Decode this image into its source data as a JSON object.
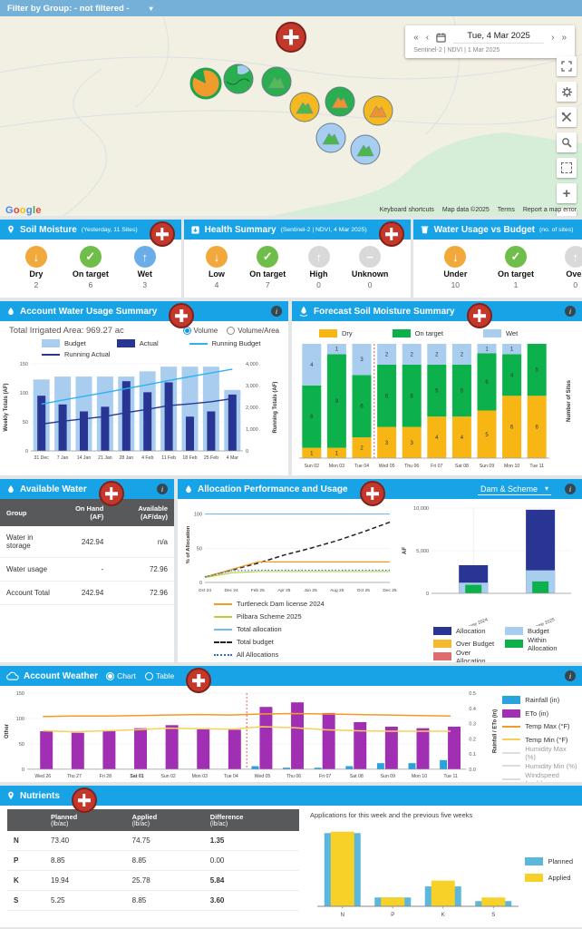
{
  "icons": {
    "info": "i",
    "caret": "▾"
  },
  "filter_bar": {
    "label": "Filter by Group: - not filtered -"
  },
  "map": {
    "date_nav": {
      "prev_fast": "«",
      "prev": "‹",
      "date": "Tue, 4 Mar 2025",
      "next": "›",
      "next_fast": "»",
      "subtitle": "Sentinel-2 | NDVI | 1 Mar 2025"
    },
    "logo": "Google",
    "attribution": [
      "Keyboard shortcuts",
      "Map data ©2025",
      "Terms",
      "Report a map error"
    ],
    "controls": [
      {
        "name": "fullscreen"
      },
      {
        "name": "settings"
      },
      {
        "name": "tools"
      },
      {
        "name": "search"
      },
      {
        "name": "selection"
      },
      {
        "name": "zoom-in"
      },
      {
        "name": "zoom-out"
      }
    ],
    "markers": [
      {
        "x": 227,
        "y": 74,
        "fill": "#f09b2c",
        "ring": "#1fa34c",
        "inner": "pie",
        "innerColor": "#1fa34c"
      },
      {
        "x": 263,
        "y": 69,
        "fill": "#2aae4f",
        "inner": "fields",
        "innerColor": "#a5cdf0"
      },
      {
        "x": 305,
        "y": 72,
        "fill": "#2aae4f",
        "inner": "mountain",
        "innerColor": "#52bd57"
      },
      {
        "x": 336,
        "y": 100,
        "fill": "#f4b820",
        "inner": "mountain",
        "innerColor": "#4cb84c"
      },
      {
        "x": 375,
        "y": 94,
        "fill": "#2aae4f",
        "inner": "mountain",
        "innerColor": "#f0922f"
      },
      {
        "x": 417,
        "y": 104,
        "fill": "#f4b820",
        "inner": "mountain",
        "innerColor": "#f0922f"
      },
      {
        "x": 365,
        "y": 134,
        "fill": "#a7cdf0",
        "inner": "mountain",
        "innerColor": "#4cb84c"
      },
      {
        "x": 403,
        "y": 147,
        "fill": "#a7cdf0",
        "inner": "mountain",
        "innerColor": "#4cb84c"
      }
    ]
  },
  "summary_cards": [
    {
      "icon": "pin",
      "icon_name": "location-pin-icon",
      "title": "Soil Moisture",
      "subtitle": "(Yesterday, 11 Sites)",
      "items": [
        {
          "label": "Dry",
          "value": "2",
          "glyph": "↓",
          "color": "#f2a93b"
        },
        {
          "label": "On target",
          "value": "6",
          "glyph": "✓",
          "color": "#6fbe4a"
        },
        {
          "label": "Wet",
          "value": "3",
          "glyph": "↑",
          "color": "#6aade8"
        }
      ]
    },
    {
      "icon": "box",
      "icon_name": "health-box-icon",
      "title": "Health Summary",
      "subtitle": "(Sentinel-2 | NDVI, 4 Mar 2025)",
      "items": [
        {
          "label": "Low",
          "value": "4",
          "glyph": "↓",
          "color": "#f2a93b"
        },
        {
          "label": "On target",
          "value": "7",
          "glyph": "✓",
          "color": "#6fbe4a"
        },
        {
          "label": "High",
          "value": "0",
          "glyph": "↑",
          "color": "#d9d9d9"
        },
        {
          "label": "Unknown",
          "value": "0",
          "glyph": "−",
          "color": "#d9d9d9"
        }
      ]
    },
    {
      "icon": "bucket",
      "icon_name": "water-bucket-icon",
      "title": "Water Usage vs Budget",
      "subtitle": "(no. of sites)",
      "items": [
        {
          "label": "Under",
          "value": "10",
          "glyph": "↓",
          "color": "#f2a93b"
        },
        {
          "label": "On target",
          "value": "1",
          "glyph": "✓",
          "color": "#6fbe4a"
        },
        {
          "label": "Over",
          "value": "0",
          "glyph": "↑",
          "color": "#d9d9d9"
        }
      ]
    }
  ],
  "panels": {
    "water_usage": {
      "title": "Account Water Usage Summary",
      "total_area": "Total Irrigated Area: 969.27 ac",
      "radios": [
        {
          "label": "Volume",
          "selected": true
        },
        {
          "label": "Volume/Area",
          "selected": false
        }
      ],
      "legend": [
        {
          "label": "Budget",
          "color": "#a9cdee",
          "type": "box"
        },
        {
          "label": "Actual",
          "color": "#283593",
          "type": "box"
        },
        {
          "label": "Running Budget",
          "color": "#2fb1ef",
          "type": "line",
          "dash": "solid"
        },
        {
          "label": "Running Actual",
          "color": "#283593",
          "type": "line",
          "dash": "solid"
        }
      ]
    },
    "forecast": {
      "title": "Forecast Soil Moisture Summary",
      "legend": [
        {
          "label": "Dry",
          "color": "#f8b614",
          "type": "box"
        },
        {
          "label": "On target",
          "color": "#0db14b",
          "type": "box"
        },
        {
          "label": "Wet",
          "color": "#a9cdee",
          "type": "box"
        }
      ]
    },
    "available_water": {
      "title": "Available Water",
      "table": {
        "headers": [
          "Group",
          "On Hand (AF)",
          "Available (AF/day)"
        ],
        "rows": [
          [
            "Water in storage",
            "242.94",
            "n/a"
          ],
          [
            "Water usage",
            "-",
            "72.96"
          ],
          [
            "Account Total",
            "242.94",
            "72.96"
          ]
        ]
      }
    },
    "allocation": {
      "title": "Allocation Performance and Usage",
      "dropdown": "Dam & Scheme",
      "line_legend": [
        {
          "label": "Turtleneck Dam license 2024",
          "color": "#f59a23",
          "type": "line",
          "dash": "solid"
        },
        {
          "label": "Pilbara Scheme 2025",
          "color": "#b5d334",
          "type": "line",
          "dash": "solid"
        },
        {
          "label": "Total allocation",
          "color": "#7ab8e8",
          "type": "line",
          "dash": "solid"
        },
        {
          "label": "Total budget",
          "color": "#222222",
          "type": "line",
          "dash": "dashed"
        },
        {
          "label": "All Allocations",
          "color": "#2d6fd2",
          "type": "line",
          "dash": "dotted"
        }
      ],
      "bar_legend": [
        {
          "label": "Allocation",
          "color": "#283593",
          "type": "box"
        },
        {
          "label": "Budget",
          "color": "#a9cdee",
          "type": "box"
        },
        {
          "label": "Over Budget",
          "color": "#f5b82e",
          "type": "box"
        },
        {
          "label": "Within Allocation",
          "color": "#0db14b",
          "type": "box"
        },
        {
          "label": "Over Allocation",
          "color": "#e06c6c",
          "type": "box"
        }
      ]
    },
    "weather": {
      "title": "Account Weather",
      "radios": [
        {
          "label": "Chart",
          "selected": true
        },
        {
          "label": "Table",
          "selected": false
        }
      ],
      "legend": [
        {
          "label": "Rainfall (in)",
          "color": "#29a3dd",
          "type": "box"
        },
        {
          "label": "ETo (in)",
          "color": "#a12fb3",
          "type": "box"
        },
        {
          "label": "Temp Max (°F)",
          "color": "#f59a23",
          "type": "line",
          "dash": "solid"
        },
        {
          "label": "Temp Min (°F)",
          "color": "#f7cf5a",
          "type": "line",
          "dash": "solid"
        },
        {
          "label": "Humidity Max (%)",
          "color": "#bdbdbd",
          "type": "line",
          "dash": "solid",
          "dimmed": true
        },
        {
          "label": "Humidity Min (%)",
          "color": "#bdbdbd",
          "type": "line",
          "dash": "solid",
          "dimmed": true
        },
        {
          "label": "Windspeed (mph)",
          "color": "#bdbdbd",
          "type": "line",
          "dash": "solid",
          "dimmed": true
        }
      ]
    },
    "nutrients": {
      "title": "Nutrients",
      "caption": "Applications for this week and the previous five weeks",
      "table": {
        "headers": [
          {
            "label": "",
            "unit": ""
          },
          {
            "label": "Planned",
            "unit": "(lb/ac)"
          },
          {
            "label": "Applied",
            "unit": "(lb/ac)"
          },
          {
            "label": "Difference",
            "unit": "(lb/ac)"
          }
        ],
        "rows": [
          {
            "name": "N",
            "planned": "73.40",
            "applied": "74.75",
            "difference": "1.35",
            "positive": true
          },
          {
            "name": "P",
            "planned": "8.85",
            "applied": "8.85",
            "difference": "0.00",
            "positive": false
          },
          {
            "name": "K",
            "planned": "19.94",
            "applied": "25.78",
            "difference": "5.84",
            "positive": true
          },
          {
            "name": "S",
            "planned": "5.25",
            "applied": "8.85",
            "difference": "3.60",
            "positive": true
          }
        ]
      },
      "legend": [
        {
          "label": "Planned",
          "color": "#5bb8dc",
          "type": "box"
        },
        {
          "label": "Applied",
          "color": "#f7d028",
          "type": "box"
        }
      ]
    }
  },
  "chart_data": [
    {
      "id": "water_usage",
      "type": "bar",
      "title": "Account Water Usage Summary",
      "categories": [
        "31 Dec",
        "7 Jan",
        "14 Jan",
        "21 Jan",
        "28 Jan",
        "4 Feb",
        "11 Feb",
        "18 Feb",
        "25 Feb",
        "4 Mar"
      ],
      "series": [
        {
          "name": "Budget",
          "kind": "bar",
          "axis": "left",
          "color": "#a9cdee",
          "values": [
            123,
            128,
            128,
            128,
            128,
            137,
            145,
            145,
            145,
            105
          ]
        },
        {
          "name": "Actual",
          "kind": "bar",
          "axis": "left",
          "color": "#283593",
          "values": [
            95,
            80,
            68,
            76,
            120,
            101,
            118,
            59,
            68,
            97
          ]
        },
        {
          "name": "Running Budget",
          "kind": "line",
          "axis": "right",
          "color": "#2fb1ef",
          "values": [
            2150,
            2330,
            2510,
            2680,
            2860,
            3040,
            3230,
            3410,
            3580,
            3750
          ]
        },
        {
          "name": "Running Actual",
          "kind": "line",
          "axis": "right",
          "color": "#283593",
          "values": [
            1230,
            1360,
            1470,
            1580,
            1760,
            1910,
            2080,
            2160,
            2260,
            2400
          ]
        }
      ],
      "ylabel_left": "Weekly Totals (AF)",
      "ylim_left": [
        0,
        150
      ],
      "yticks_left": [
        0,
        50,
        100,
        150
      ],
      "ylabel_right": "Running Totals (AF)",
      "ylim_right": [
        0,
        4000
      ],
      "yticks_right": [
        0,
        1000,
        2000,
        3000,
        4000
      ]
    },
    {
      "id": "forecast",
      "type": "stacked_bar",
      "title": "Forecast Soil Moisture Summary",
      "categories": [
        "Sun 02",
        "Mon 03",
        "Tue 04",
        "Wed 05",
        "Thu 06",
        "Fri 07",
        "Sat 08",
        "Sun 09",
        "Mon 10",
        "Tue 11"
      ],
      "series": [
        {
          "name": "Dry",
          "color": "#f8b614",
          "values": [
            1,
            1,
            2,
            3,
            3,
            4,
            4,
            5,
            6,
            6
          ]
        },
        {
          "name": "On target",
          "color": "#0db14b",
          "values": [
            6,
            9,
            6,
            6,
            6,
            5,
            5,
            6,
            4,
            5
          ]
        },
        {
          "name": "Wet",
          "color": "#a9cdee",
          "values": [
            4,
            1,
            3,
            2,
            2,
            2,
            2,
            1,
            1,
            0
          ]
        }
      ],
      "ylabel_right": "Number of Sites",
      "today_divider_after_index": 2
    },
    {
      "id": "allocation_lines",
      "type": "line",
      "title": "Allocation Performance",
      "categories": [
        "Oct 24",
        "Dec 24",
        "Feb 25",
        "Apr 25",
        "Jun 25",
        "Aug 25",
        "Oct 25",
        "Dec 25"
      ],
      "ylabel_left": "% of Allocation",
      "ylim_left": [
        0,
        110
      ],
      "yticks_left": [
        0,
        50,
        100
      ],
      "series": [
        {
          "name": "Total allocation",
          "color": "#7ab8e8",
          "dash": "solid",
          "values": [
            100,
            100,
            100,
            100,
            100,
            100,
            100,
            100
          ]
        },
        {
          "name": "Total budget",
          "color": "#222222",
          "dash": "dashed",
          "values": [
            8,
            18,
            28,
            40,
            50,
            61,
            74,
            88
          ]
        },
        {
          "name": "Turtleneck Dam license 2024",
          "color": "#f59a23",
          "dash": "solid",
          "values": [
            8,
            19,
            30,
            30,
            30,
            30,
            30,
            30
          ]
        },
        {
          "name": "Pilbara Scheme 2025",
          "color": "#b5d334",
          "dash": "solid",
          "values": [
            7,
            14,
            16,
            16,
            16,
            16,
            16,
            16
          ]
        },
        {
          "name": "All Allocations",
          "color": "#2d6fd2",
          "dash": "dotted",
          "values": [
            8,
            17,
            18,
            18,
            18,
            18,
            18,
            18
          ]
        }
      ]
    },
    {
      "id": "allocation_bars",
      "type": "bar",
      "title": "Allocation Usage",
      "categories": [
        "Turtleneck Dam license 2024",
        "Pilbara Scheme 2025"
      ],
      "ylabel_left": "AF",
      "ylim_left": [
        0,
        10000
      ],
      "yticks_left": [
        0,
        5000,
        10000
      ],
      "series": [
        {
          "name": "Allocation",
          "color": "#283593",
          "values": [
            3300,
            9800
          ]
        },
        {
          "name": "Budget",
          "color": "#a9cdee",
          "values": [
            1250,
            2700
          ]
        },
        {
          "name": "Within Allocation",
          "color": "#0db14b",
          "values": [
            1000,
            1400
          ]
        }
      ]
    },
    {
      "id": "weather",
      "type": "bar",
      "title": "Account Weather",
      "categories": [
        "Wed 26",
        "Thu 27",
        "Fri 28",
        "Sat 01",
        "Sun 02",
        "Mon 03",
        "Tue 04",
        "Wed 05",
        "Thu 06",
        "Fri 07",
        "Sat 08",
        "Sun 09",
        "Mon 10",
        "Tue 11"
      ],
      "bold_category": "Sat 01",
      "today_divider_after_index": 6,
      "ylabel_left": "Other",
      "ylim_left": [
        0,
        150
      ],
      "yticks_left": [
        0,
        50,
        100,
        150
      ],
      "ylabel_right": "Rainfall / ETo (in)",
      "ylim_right": [
        0,
        0.5
      ],
      "yticks_right": [
        0,
        0.1,
        0.2,
        0.3,
        0.4,
        0.5
      ],
      "series": [
        {
          "name": "Rainfall (in)",
          "kind": "bar",
          "axis": "right",
          "color": "#29a3dd",
          "values": [
            0,
            0,
            0,
            0,
            0,
            0,
            0,
            0.02,
            0.01,
            0.01,
            0.02,
            0.04,
            0.04,
            0.06
          ]
        },
        {
          "name": "ETo (in)",
          "kind": "bar",
          "axis": "right",
          "color": "#a12fb3",
          "values": [
            0.25,
            0.24,
            0.25,
            0.27,
            0.29,
            0.27,
            0.26,
            0.41,
            0.44,
            0.37,
            0.31,
            0.28,
            0.27,
            0.28
          ]
        },
        {
          "name": "Temp Max (°F)",
          "kind": "line",
          "axis": "left",
          "color": "#f59a23",
          "values": [
            104,
            105,
            105,
            106,
            107,
            108,
            107,
            109,
            110,
            109,
            108,
            107,
            106,
            105
          ]
        },
        {
          "name": "Temp Min (°F)",
          "kind": "line",
          "axis": "left",
          "color": "#f7cf5a",
          "values": [
            76,
            74,
            76,
            78,
            81,
            80,
            79,
            84,
            82,
            78,
            76,
            75,
            75,
            75
          ]
        }
      ]
    },
    {
      "id": "nutrients",
      "type": "bar",
      "title": "Applications for this week and the previous five weeks",
      "categories": [
        "N",
        "P",
        "K",
        "S"
      ],
      "ylim_left": [
        0,
        80
      ],
      "series": [
        {
          "name": "Planned",
          "color": "#5bb8dc",
          "values": [
            73.4,
            8.85,
            19.94,
            5.25
          ]
        },
        {
          "name": "Applied",
          "color": "#f7d028",
          "values": [
            74.75,
            8.85,
            25.78,
            8.85
          ]
        }
      ]
    }
  ]
}
